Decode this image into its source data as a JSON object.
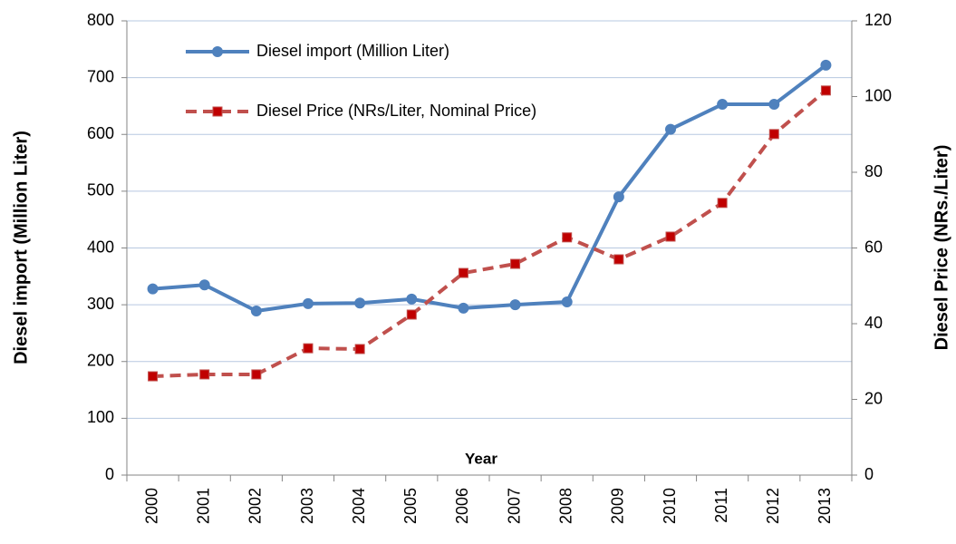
{
  "chart_data": {
    "type": "line",
    "x_label": "Year",
    "y_label": "Diesel import (Million Liter)",
    "y2_label": "Diesel Price (NRs./Liter)",
    "categories": [
      "2000",
      "2001",
      "2002",
      "2003",
      "2004",
      "2005",
      "2006",
      "2007",
      "2008",
      "2009",
      "2010",
      "2011",
      "2012",
      "2013"
    ],
    "series": [
      {
        "name": "Diesel import (Million Liter)",
        "color": "#4f81bd",
        "axis": "y",
        "values": [
          328,
          335,
          289,
          302,
          303,
          310,
          294,
          300,
          305,
          490,
          609,
          653,
          653,
          722
        ]
      },
      {
        "name": "Diesel Price (NRs/Liter, Nominal Price)",
        "color": "#c0504d",
        "axis": "y2",
        "values": [
          26.1,
          26.6,
          26.6,
          33.5,
          33.3,
          42.4,
          53.4,
          55.8,
          62.8,
          57,
          63,
          71.9,
          90.1,
          101.6
        ]
      }
    ],
    "ylim": [
      0,
      800
    ],
    "yticks": [
      0,
      100,
      200,
      300,
      400,
      500,
      600,
      700,
      800
    ],
    "y2lim": [
      0,
      120
    ],
    "y2ticks": [
      0,
      20,
      40,
      60,
      80,
      100,
      120
    ],
    "grid": true,
    "legend": "upper left"
  }
}
